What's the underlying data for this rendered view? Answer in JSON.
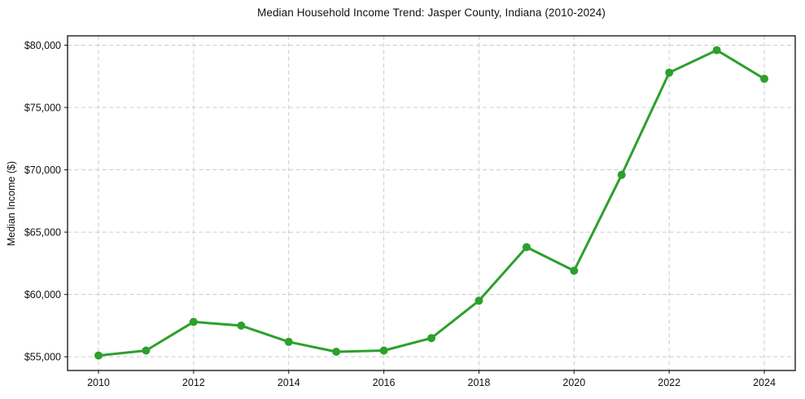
{
  "chart_data": {
    "type": "line",
    "title": "Median Household Income Trend: Jasper County, Indiana (2010-2024)",
    "xlabel": "",
    "ylabel": "Median Income ($)",
    "x": [
      2010,
      2011,
      2012,
      2013,
      2014,
      2015,
      2016,
      2017,
      2018,
      2019,
      2020,
      2021,
      2022,
      2023,
      2024
    ],
    "series": [
      {
        "name": "Median Household Income",
        "values": [
          55100,
          55500,
          57800,
          57500,
          56200,
          55400,
          55500,
          56500,
          59500,
          63800,
          61900,
          69600,
          77800,
          79600,
          77300
        ],
        "color": "#2ca02c",
        "marker": "circle",
        "marker_radius": 5,
        "line_width": 3
      }
    ],
    "xticks": [
      {
        "value": 2010,
        "label": "2010"
      },
      {
        "value": 2012,
        "label": "2012"
      },
      {
        "value": 2014,
        "label": "2014"
      },
      {
        "value": 2016,
        "label": "2016"
      },
      {
        "value": 2018,
        "label": "2018"
      },
      {
        "value": 2020,
        "label": "2020"
      },
      {
        "value": 2022,
        "label": "2022"
      },
      {
        "value": 2024,
        "label": "2024"
      }
    ],
    "yticks": [
      {
        "value": 55000,
        "label": "$55,000"
      },
      {
        "value": 60000,
        "label": "$60,000"
      },
      {
        "value": 65000,
        "label": "$65,000"
      },
      {
        "value": 70000,
        "label": "$70,000"
      },
      {
        "value": 75000,
        "label": "$75,000"
      },
      {
        "value": 80000,
        "label": "$80,000"
      }
    ],
    "xlim": [
      2009.35,
      2024.65
    ],
    "ylim": [
      53900,
      80750
    ],
    "grid": true,
    "grid_color": "#cccccc",
    "legend": "none",
    "axis_color": "#0a0a0a"
  }
}
